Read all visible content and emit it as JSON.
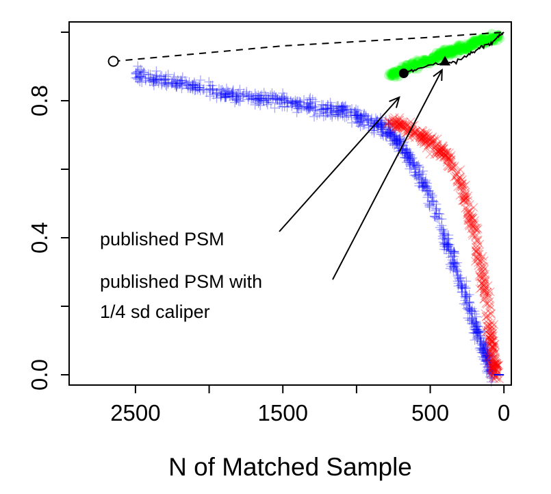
{
  "chart_data": {
    "type": "scatter",
    "title": "",
    "xlabel": "N of Matched Sample",
    "ylabel": "",
    "xlim": [
      2950,
      -50
    ],
    "ylim": [
      -0.03,
      1.03
    ],
    "x_reversed": true,
    "x_ticks": [
      2500,
      2000,
      1500,
      1000,
      500,
      0
    ],
    "x_tick_labels": [
      "2500",
      "",
      "1500",
      "",
      "500",
      "0"
    ],
    "y_ticks": [
      0.0,
      0.2,
      0.4,
      0.6,
      0.8,
      1.0
    ],
    "y_tick_labels": [
      "0.0",
      "",
      "0.4",
      "",
      "0.8",
      ""
    ],
    "grid": false,
    "legend": "none",
    "series": [
      {
        "color": "#0000ff",
        "marker": "plus",
        "points": [
          [
            2500,
            0.88
          ],
          [
            2300,
            0.86
          ],
          [
            2100,
            0.84
          ],
          [
            1900,
            0.82
          ],
          [
            1700,
            0.81
          ],
          [
            1500,
            0.8
          ],
          [
            1300,
            0.78
          ],
          [
            1100,
            0.77
          ],
          [
            900,
            0.74
          ],
          [
            800,
            0.72
          ],
          [
            700,
            0.67
          ],
          [
            600,
            0.6
          ],
          [
            500,
            0.52
          ],
          [
            400,
            0.4
          ],
          [
            300,
            0.28
          ],
          [
            200,
            0.15
          ],
          [
            120,
            0.06
          ],
          [
            80,
            0.0
          ]
        ]
      },
      {
        "color": "#ff0000",
        "marker": "cross",
        "points": [
          [
            780,
            0.74
          ],
          [
            650,
            0.72
          ],
          [
            500,
            0.68
          ],
          [
            400,
            0.64
          ],
          [
            300,
            0.57
          ],
          [
            220,
            0.45
          ],
          [
            150,
            0.3
          ],
          [
            100,
            0.15
          ],
          [
            70,
            0.05
          ],
          [
            60,
            0.0
          ]
        ]
      },
      {
        "color": "#00ff00",
        "marker": "circle",
        "points": [
          [
            780,
            0.87
          ],
          [
            650,
            0.9
          ],
          [
            500,
            0.92
          ],
          [
            400,
            0.94
          ],
          [
            300,
            0.95
          ],
          [
            200,
            0.97
          ],
          [
            100,
            0.98
          ],
          [
            30,
            0.99
          ]
        ]
      },
      {
        "color": "#000000",
        "marker": "line",
        "points": [
          [
            680,
            0.88
          ],
          [
            600,
            0.89
          ],
          [
            450,
            0.91
          ],
          [
            350,
            0.91
          ],
          [
            250,
            0.93
          ],
          [
            180,
            0.95
          ],
          [
            130,
            0.96
          ],
          [
            80,
            0.97
          ],
          [
            30,
            0.99
          ],
          [
            0,
            1.0
          ]
        ]
      },
      {
        "color": "#000000",
        "marker": "dashed",
        "points": [
          [
            2650,
            0.915
          ],
          [
            1500,
            0.96
          ],
          [
            500,
            0.985
          ],
          [
            0,
            1.0
          ]
        ]
      }
    ],
    "markers": [
      {
        "shape": "open-circle",
        "x": 2650,
        "y": 0.915
      },
      {
        "shape": "filled-circle",
        "x": 680,
        "y": 0.88
      },
      {
        "shape": "filled-triangle",
        "x": 400,
        "y": 0.915
      }
    ],
    "annotations": [
      {
        "lines": [
          "published PSM"
        ],
        "arrow_to": {
          "x": 710,
          "y": 0.81
        }
      },
      {
        "lines": [
          "published PSM with",
          "1/4 sd caliper"
        ],
        "arrow_to": {
          "x": 420,
          "y": 0.89
        }
      }
    ]
  }
}
